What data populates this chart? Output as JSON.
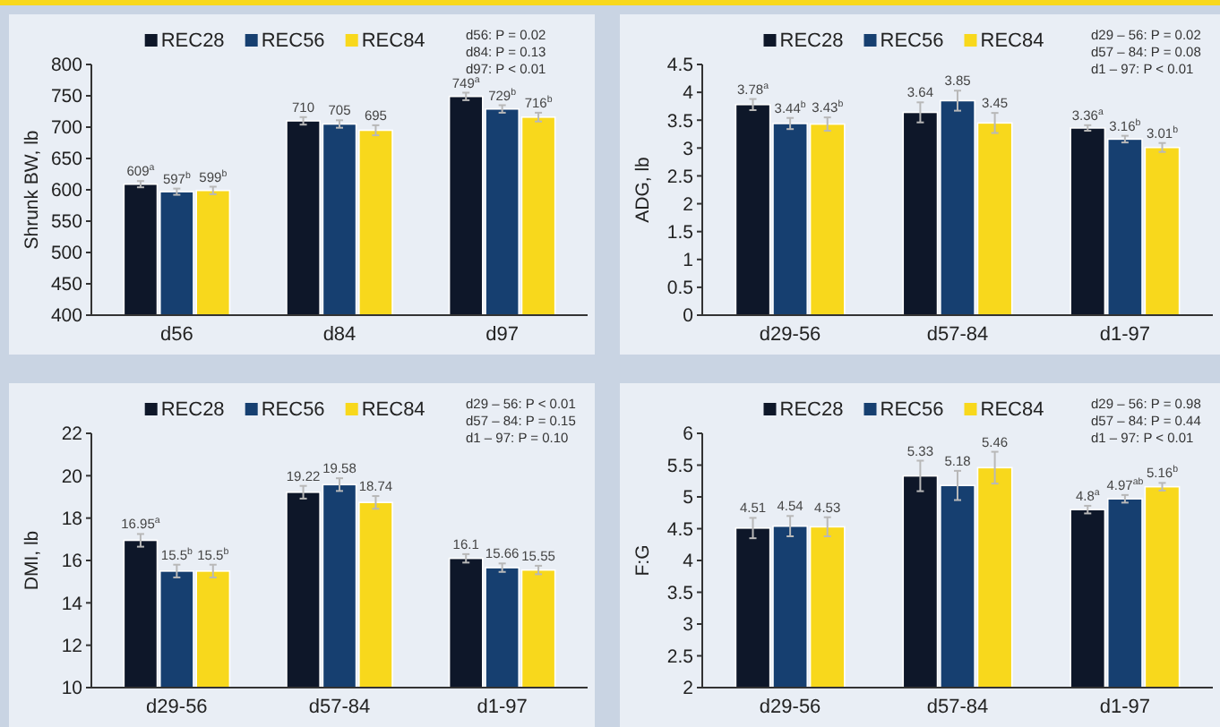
{
  "chart_data": [
    {
      "type": "bar",
      "ylabel": "Shrunk BW, lb",
      "categories": [
        "d56",
        "d84",
        "d97"
      ],
      "ylim": [
        400,
        800
      ],
      "yticks": [
        400,
        450,
        500,
        550,
        600,
        650,
        700,
        750,
        800
      ],
      "legend": "top",
      "grid": false,
      "annotations": [
        "d56: P = 0.02",
        "d84: P = 0.13",
        "d97: P < 0.01"
      ],
      "series": [
        {
          "name": "REC28",
          "color": "#0e1729",
          "values": [
            609,
            710,
            749
          ],
          "errors": [
            5,
            6,
            6
          ],
          "value_labels": [
            "609$^{a}$",
            "710",
            "749$^{a}$"
          ]
        },
        {
          "name": "REC56",
          "color": "#163f70",
          "values": [
            597,
            705,
            729
          ],
          "errors": [
            5,
            6,
            6
          ],
          "value_labels": [
            "597$^{b}$",
            "705",
            "729$^{b}$"
          ]
        },
        {
          "name": "REC84",
          "color": "#f8d81c",
          "values": [
            599,
            695,
            716
          ],
          "errors": [
            6,
            8,
            7
          ],
          "value_labels": [
            "599$^{b}$",
            "695",
            "716$^{b}$"
          ]
        }
      ]
    },
    {
      "type": "bar",
      "ylabel": "ADG, lb",
      "categories": [
        "d29-56",
        "d57-84",
        "d1-97"
      ],
      "ylim": [
        0,
        4.5
      ],
      "yticks": [
        0,
        0.5,
        1,
        1.5,
        2,
        2.5,
        3,
        3.5,
        4,
        4.5
      ],
      "legend": "top",
      "grid": false,
      "annotations": [
        "d29 – 56: P = 0.02",
        "d57 – 84: P = 0.08",
        "d1 – 97: P < 0.01"
      ],
      "series": [
        {
          "name": "REC28",
          "color": "#0e1729",
          "values": [
            3.78,
            3.64,
            3.36
          ],
          "errors": [
            0.1,
            0.18,
            0.05
          ],
          "value_labels": [
            "3.78$^{a}$",
            "3.64",
            "3.36$^{a}$"
          ]
        },
        {
          "name": "REC56",
          "color": "#163f70",
          "values": [
            3.44,
            3.85,
            3.16
          ],
          "errors": [
            0.1,
            0.18,
            0.06
          ],
          "value_labels": [
            "3.44$^{b}$",
            "3.85",
            "3.16$^{b}$"
          ]
        },
        {
          "name": "REC84",
          "color": "#f8d81c",
          "values": [
            3.43,
            3.45,
            3.01
          ],
          "errors": [
            0.12,
            0.18,
            0.08
          ],
          "value_labels": [
            "3.43$^{b}$",
            "3.45",
            "3.01$^{b}$"
          ]
        }
      ]
    },
    {
      "type": "bar",
      "ylabel": "DMI, lb",
      "categories": [
        "d29-56",
        "d57-84",
        "d1-97"
      ],
      "ylim": [
        10,
        22
      ],
      "yticks": [
        10,
        12,
        14,
        16,
        18,
        20,
        22
      ],
      "legend": "top",
      "grid": false,
      "annotations": [
        "d29 – 56: P < 0.01",
        "d57 – 84: P = 0.15",
        "d1 – 97: P = 0.10"
      ],
      "series": [
        {
          "name": "REC28",
          "color": "#0e1729",
          "values": [
            16.95,
            19.22,
            16.1
          ],
          "errors": [
            0.3,
            0.3,
            0.2
          ],
          "value_labels": [
            "16.95$^{a}$",
            "19.22",
            "16.1"
          ]
        },
        {
          "name": "REC56",
          "color": "#163f70",
          "values": [
            15.5,
            19.58,
            15.66
          ],
          "errors": [
            0.3,
            0.3,
            0.2
          ],
          "value_labels": [
            "15.5$^{b}$",
            "19.58",
            "15.66"
          ]
        },
        {
          "name": "REC84",
          "color": "#f8d81c",
          "values": [
            15.5,
            18.74,
            15.55
          ],
          "errors": [
            0.3,
            0.3,
            0.2
          ],
          "value_labels": [
            "15.5$^{b}$",
            "18.74",
            "15.55"
          ]
        }
      ]
    },
    {
      "type": "bar",
      "ylabel": "F:G",
      "categories": [
        "d29-56",
        "d57-84",
        "d1-97"
      ],
      "ylim": [
        2,
        6
      ],
      "yticks": [
        2,
        2.5,
        3,
        3.5,
        4,
        4.5,
        5,
        5.5,
        6
      ],
      "legend": "top",
      "grid": false,
      "annotations": [
        "d29 – 56: P = 0.98",
        "d57 – 84: P = 0.44",
        "d1 – 97: P < 0.01"
      ],
      "series": [
        {
          "name": "REC28",
          "color": "#0e1729",
          "values": [
            4.51,
            5.33,
            4.8
          ],
          "errors": [
            0.16,
            0.24,
            0.06
          ],
          "value_labels": [
            "4.51",
            "5.33",
            "4.8$^{a}$"
          ]
        },
        {
          "name": "REC56",
          "color": "#163f70",
          "values": [
            4.54,
            5.18,
            4.97
          ],
          "errors": [
            0.16,
            0.23,
            0.06
          ],
          "value_labels": [
            "4.54",
            "5.18",
            "4.97$^{ab}$"
          ]
        },
        {
          "name": "REC84",
          "color": "#f8d81c",
          "values": [
            4.53,
            5.46,
            5.16
          ],
          "errors": [
            0.15,
            0.25,
            0.06
          ],
          "value_labels": [
            "4.53",
            "5.46",
            "5.16$^{b}$"
          ]
        }
      ]
    }
  ]
}
